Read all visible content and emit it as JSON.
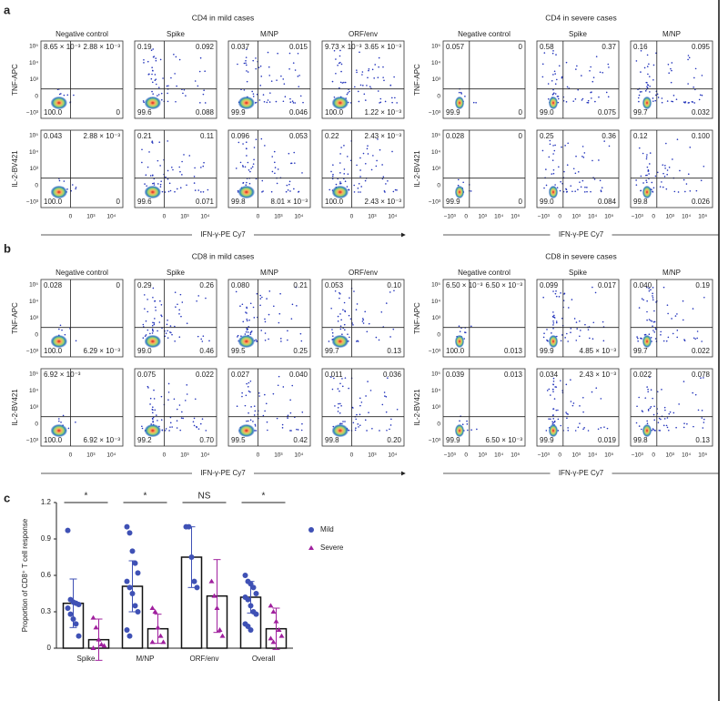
{
  "panels": [
    {
      "letter": "a",
      "groups": [
        {
          "title": "CD4 in mild cases",
          "columns": [
            "Negative control",
            "Spike",
            "M/NP",
            "ORF/env"
          ],
          "yticks": [
            "10⁵",
            "10⁴",
            "10³",
            "0",
            "−10³"
          ],
          "xticks": [
            "0",
            "10³",
            "10⁴"
          ],
          "xlabel": "IFN-γ-PE Cy7",
          "rows": [
            {
              "label": "TNF-APC",
              "cells": [
                [
                  "8.65 × 10⁻³",
                  "2.88 × 10⁻³",
                  "100.0",
                  "0"
                ],
                [
                  "0.19",
                  "0.092",
                  "99.6",
                  "0.088"
                ],
                [
                  "0.037",
                  "0.015",
                  "99.9",
                  "0.046"
                ],
                [
                  "9.73 × 10⁻³",
                  "3.65 × 10⁻³",
                  "100.0",
                  "1.22 × 10⁻³"
                ]
              ]
            },
            {
              "label": "IL-2-BV421",
              "cells": [
                [
                  "0.043",
                  "2.88 × 10⁻³",
                  "100.0",
                  "0"
                ],
                [
                  "0.21",
                  "0.11",
                  "99.6",
                  "0.071"
                ],
                [
                  "0.096",
                  "0.053",
                  "99.8",
                  "8.01 × 10⁻³"
                ],
                [
                  "0.22",
                  "2.43 × 10⁻³",
                  "100.0",
                  "2.43 × 10⁻³"
                ]
              ]
            }
          ]
        },
        {
          "title": "CD4 in severe cases",
          "columns": [
            "Negative control",
            "Spike",
            "M/NP"
          ],
          "yticks": [
            "10⁵",
            "10⁴",
            "10³",
            "0",
            "−10³"
          ],
          "xticks": [
            "−10³",
            "0",
            "10³",
            "10⁴",
            "10⁵"
          ],
          "xlabel": "IFN-γ-PE Cy7",
          "rows": [
            {
              "label": "TNF-APC",
              "cells": [
                [
                  "0.057",
                  "0",
                  "99.9",
                  "0"
                ],
                [
                  "0.58",
                  "0.37",
                  "99.0",
                  "0.075"
                ],
                [
                  "0.16",
                  "0.095",
                  "99.7",
                  "0.032"
                ]
              ]
            },
            {
              "label": "IL-2-BV421",
              "cells": [
                [
                  "0.028",
                  "0",
                  "99.9",
                  "0"
                ],
                [
                  "0.25",
                  "0.36",
                  "99.0",
                  "0.084"
                ],
                [
                  "0.12",
                  "0.100",
                  "99.8",
                  "0.026"
                ]
              ]
            }
          ]
        }
      ]
    },
    {
      "letter": "b",
      "groups": [
        {
          "title": "CD8 in mild cases",
          "columns": [
            "Negative control",
            "Spike",
            "M/NP",
            "ORF/env"
          ],
          "yticks": [
            "10⁵",
            "10⁴",
            "10³",
            "0",
            "−10³"
          ],
          "xticks": [
            "0",
            "10³",
            "10⁴"
          ],
          "xlabel": "IFN-γ-PE Cy7",
          "rows": [
            {
              "label": "TNF-APC",
              "cells": [
                [
                  "0.028",
                  "0",
                  "100.0",
                  "6.29 × 10⁻³"
                ],
                [
                  "0.29",
                  "0.26",
                  "99.0",
                  "0.46"
                ],
                [
                  "0.080",
                  "0.21",
                  "99.5",
                  "0.25"
                ],
                [
                  "0.053",
                  "0.10",
                  "99.7",
                  "0.13"
                ]
              ]
            },
            {
              "label": "IL-2-BV421",
              "cells": [
                [
                  "6.92 × 10⁻³",
                  null,
                  "100.0",
                  "6.92 × 10⁻³"
                ],
                [
                  "0.075",
                  "0.022",
                  "99.2",
                  "0.70"
                ],
                [
                  "0.027",
                  "0.040",
                  "99.5",
                  "0.42"
                ],
                [
                  "0.011",
                  "0.036",
                  "99.8",
                  "0.20"
                ]
              ]
            }
          ]
        },
        {
          "title": "CD8 in severe cases",
          "columns": [
            "Negative control",
            "Spike",
            "M/NP"
          ],
          "yticks": [
            "10⁵",
            "10⁴",
            "10³",
            "0",
            "−10³"
          ],
          "xticks": [
            "−10³",
            "0",
            "10³",
            "10⁴",
            "10⁵"
          ],
          "xlabel": "IFN-γ-PE Cy7",
          "rows": [
            {
              "label": "TNF-APC",
              "cells": [
                [
                  "6.50 × 10⁻³",
                  "6.50 × 10⁻³",
                  "100.0",
                  "0.013"
                ],
                [
                  "0.099",
                  "0.017",
                  "99.9",
                  "4.85 × 10⁻³"
                ],
                [
                  "0.040",
                  "0.19",
                  "99.7",
                  "0.022"
                ]
              ]
            },
            {
              "label": "IL-2-BV421",
              "cells": [
                [
                  "0.039",
                  "0.013",
                  "99.9",
                  "6.50 × 10⁻³"
                ],
                [
                  "0.034",
                  "2.43 × 10⁻³",
                  "99.9",
                  "0.019"
                ],
                [
                  "0.022",
                  "0.078",
                  "99.8",
                  "0.13"
                ]
              ]
            }
          ]
        }
      ]
    }
  ],
  "chart_letter": "c",
  "chart_data": {
    "type": "bar",
    "y_label": "Proportion of CD8⁺ T cell response",
    "categories": [
      "Spike",
      "M/NP",
      "ORF/env",
      "Overall"
    ],
    "ylim": [
      0,
      1.2
    ],
    "yticks": [
      0,
      0.3,
      0.6,
      0.9,
      1.2
    ],
    "annotations": [
      "*",
      "*",
      "NS",
      "*"
    ],
    "series": [
      {
        "name": "Mild",
        "color": "#3f51b5",
        "marker": "circle",
        "values": [
          0.37,
          0.51,
          0.75,
          0.42
        ],
        "errors": [
          0.2,
          0.21,
          0.25,
          0.13
        ],
        "points": [
          [
            0.97,
            0.4,
            0.38,
            0.37,
            0.36,
            0.33,
            0.28,
            0.24,
            0.2,
            0.1
          ],
          [
            1.0,
            0.95,
            0.8,
            0.7,
            0.62,
            0.55,
            0.5,
            0.45,
            0.35,
            0.3,
            0.15,
            0.1
          ],
          [
            1.0,
            1.0,
            0.75,
            0.55,
            0.5
          ],
          [
            0.6,
            0.55,
            0.53,
            0.5,
            0.45,
            0.42,
            0.4,
            0.35,
            0.3,
            0.28,
            0.2,
            0.18,
            0.15
          ]
        ]
      },
      {
        "name": "Severe",
        "color": "#a0209e",
        "marker": "triangle",
        "values": [
          0.07,
          0.16,
          0.43,
          0.16
        ],
        "errors": [
          0.17,
          0.12,
          0.3,
          0.17
        ],
        "points": [
          [
            0.25,
            0.17,
            0.07,
            0.03,
            0.02,
            0.0
          ],
          [
            0.33,
            0.3,
            0.17,
            0.1,
            0.05,
            0.05
          ],
          [
            0.55,
            0.43,
            0.33,
            0.15,
            0.1
          ],
          [
            0.35,
            0.3,
            0.22,
            0.15,
            0.1,
            0.08,
            0.05
          ]
        ]
      }
    ]
  }
}
